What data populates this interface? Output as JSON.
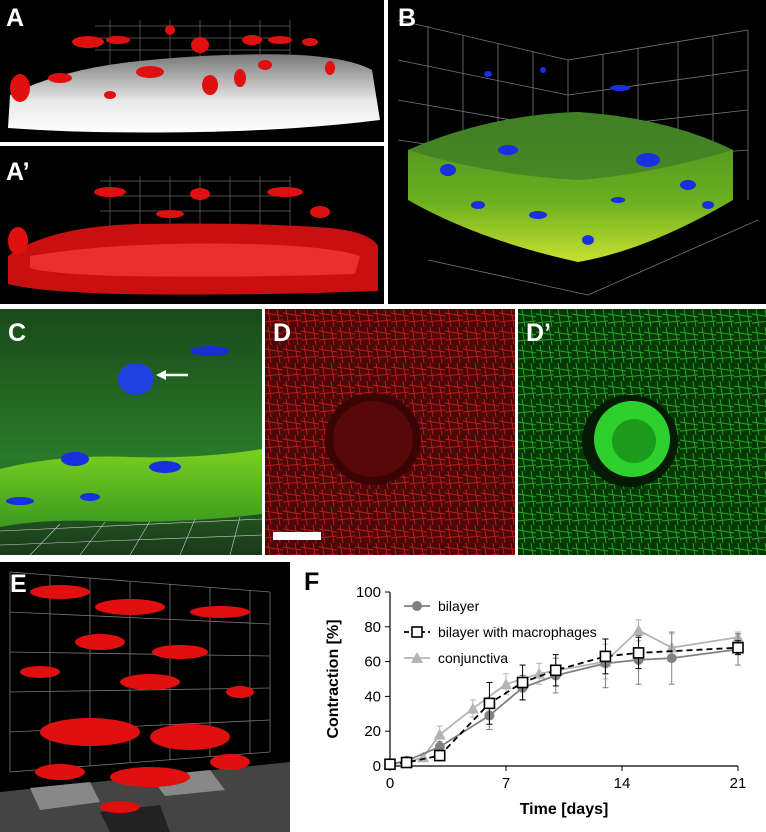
{
  "figure": {
    "labels": {
      "a": "A",
      "a_prime": "A’",
      "b": "B",
      "c": "C",
      "d": "D",
      "d_prime": "D’",
      "e": "E",
      "f": "F"
    },
    "colors": {
      "red_stain": "#e01010",
      "green_stain": "#3fbf1f",
      "blue_stain": "#1830e0",
      "grey_tissue": "#d8d8d8"
    }
  },
  "chart_data": {
    "type": "line",
    "title": "",
    "xlabel": "Time [days]",
    "ylabel": "Contraction [%]",
    "xlim": [
      0,
      21
    ],
    "ylim": [
      0,
      100
    ],
    "xticks": [
      0,
      7,
      14,
      21
    ],
    "yticks": [
      0,
      20,
      40,
      60,
      80,
      100
    ],
    "grid": false,
    "legend_position": "top-left",
    "series": [
      {
        "name": "bilayer",
        "marker": "circle",
        "line": "solid",
        "color": "#808080",
        "x": [
          0,
          1,
          3,
          6,
          8,
          10,
          13,
          15,
          17,
          21
        ],
        "y": [
          1,
          3,
          11,
          29,
          45,
          52,
          59,
          61,
          62,
          67
        ],
        "err": [
          1,
          1,
          3,
          8,
          7,
          10,
          14,
          14,
          15,
          9
        ]
      },
      {
        "name": "bilayer with macrophages",
        "marker": "open-square",
        "line": "dashed",
        "color": "#000000",
        "x": [
          0,
          1,
          3,
          6,
          8,
          10,
          13,
          15,
          21
        ],
        "y": [
          1,
          2,
          6,
          36,
          48,
          55,
          63,
          65,
          68
        ],
        "err": [
          1,
          1,
          3,
          12,
          10,
          9,
          10,
          9,
          4
        ]
      },
      {
        "name": "conjunctiva",
        "marker": "triangle",
        "line": "solid",
        "color": "#b4b4b4",
        "x": [
          0,
          1,
          2,
          3,
          5,
          7,
          9,
          13,
          15,
          17,
          21
        ],
        "y": [
          1,
          2,
          5,
          18,
          33,
          47,
          53,
          60,
          78,
          68,
          74
        ],
        "err": [
          1,
          1,
          2,
          5,
          5,
          6,
          6,
          10,
          6,
          8,
          3
        ]
      }
    ]
  }
}
